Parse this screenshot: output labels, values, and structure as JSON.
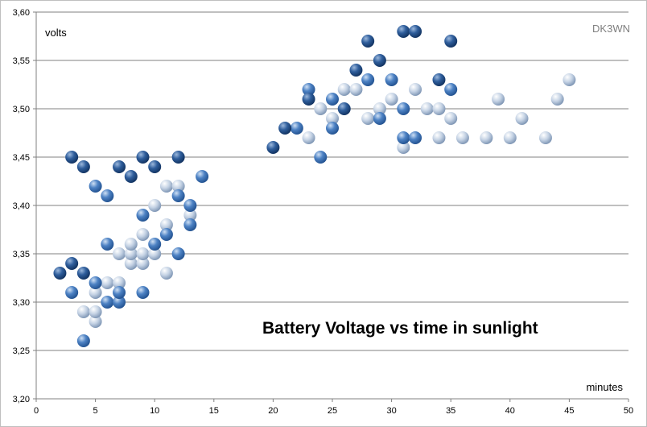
{
  "chart_data": {
    "type": "scatter",
    "title": "Battery Voltage vs  time in sunlight",
    "xlabel": "minutes",
    "ylabel": "volts",
    "credit": "DK3WN",
    "xlim": [
      0,
      50
    ],
    "ylim": [
      3.2,
      3.6
    ],
    "x_ticks": [
      "0",
      "5",
      "10",
      "15",
      "20",
      "25",
      "30",
      "35",
      "40",
      "45",
      "50"
    ],
    "y_ticks": [
      "3,20",
      "3,25",
      "3,30",
      "3,35",
      "3,40",
      "3,45",
      "3,50",
      "3,55",
      "3,60"
    ],
    "grid": "horizontal",
    "colors": {
      "dark": "#1f4e8c",
      "medium": "#3f73b8",
      "light": "#b8c8dc",
      "grid": "#808080",
      "frame": "#bfbfbf"
    },
    "series": [
      {
        "color": "dark",
        "points": [
          [
            2,
            3.33
          ],
          [
            3,
            3.34
          ],
          [
            4,
            3.33
          ],
          [
            3,
            3.45
          ],
          [
            4,
            3.44
          ],
          [
            7,
            3.44
          ],
          [
            8,
            3.43
          ],
          [
            9,
            3.45
          ],
          [
            10,
            3.44
          ],
          [
            12,
            3.45
          ],
          [
            20,
            3.46
          ],
          [
            21,
            3.48
          ],
          [
            23,
            3.51
          ],
          [
            26,
            3.5
          ],
          [
            27,
            3.54
          ],
          [
            28,
            3.57
          ],
          [
            29,
            3.55
          ],
          [
            31,
            3.58
          ],
          [
            32,
            3.58
          ],
          [
            34,
            3.53
          ],
          [
            35,
            3.57
          ]
        ]
      },
      {
        "color": "medium",
        "points": [
          [
            3,
            3.31
          ],
          [
            4,
            3.26
          ],
          [
            5,
            3.32
          ],
          [
            5,
            3.42
          ],
          [
            6,
            3.41
          ],
          [
            6,
            3.36
          ],
          [
            6,
            3.3
          ],
          [
            7,
            3.3
          ],
          [
            7,
            3.31
          ],
          [
            9,
            3.31
          ],
          [
            9,
            3.39
          ],
          [
            10,
            3.36
          ],
          [
            11,
            3.37
          ],
          [
            12,
            3.41
          ],
          [
            12,
            3.35
          ],
          [
            13,
            3.38
          ],
          [
            13,
            3.4
          ],
          [
            14,
            3.43
          ],
          [
            22,
            3.48
          ],
          [
            23,
            3.52
          ],
          [
            24,
            3.45
          ],
          [
            25,
            3.48
          ],
          [
            25,
            3.51
          ],
          [
            28,
            3.53
          ],
          [
            29,
            3.49
          ],
          [
            30,
            3.53
          ],
          [
            31,
            3.5
          ],
          [
            31,
            3.47
          ],
          [
            32,
            3.47
          ],
          [
            35,
            3.52
          ]
        ]
      },
      {
        "color": "light",
        "points": [
          [
            4,
            3.29
          ],
          [
            5,
            3.28
          ],
          [
            5,
            3.29
          ],
          [
            5,
            3.31
          ],
          [
            6,
            3.32
          ],
          [
            7,
            3.32
          ],
          [
            7,
            3.35
          ],
          [
            8,
            3.34
          ],
          [
            8,
            3.35
          ],
          [
            8,
            3.36
          ],
          [
            9,
            3.34
          ],
          [
            9,
            3.35
          ],
          [
            9,
            3.37
          ],
          [
            10,
            3.35
          ],
          [
            10,
            3.4
          ],
          [
            11,
            3.33
          ],
          [
            11,
            3.38
          ],
          [
            11,
            3.42
          ],
          [
            12,
            3.42
          ],
          [
            13,
            3.39
          ],
          [
            23,
            3.47
          ],
          [
            24,
            3.5
          ],
          [
            25,
            3.49
          ],
          [
            26,
            3.52
          ],
          [
            27,
            3.52
          ],
          [
            28,
            3.49
          ],
          [
            29,
            3.5
          ],
          [
            30,
            3.51
          ],
          [
            31,
            3.46
          ],
          [
            32,
            3.52
          ],
          [
            33,
            3.5
          ],
          [
            34,
            3.5
          ],
          [
            34,
            3.47
          ],
          [
            35,
            3.49
          ],
          [
            36,
            3.47
          ],
          [
            38,
            3.47
          ],
          [
            39,
            3.51
          ],
          [
            40,
            3.47
          ],
          [
            41,
            3.49
          ],
          [
            43,
            3.47
          ],
          [
            44,
            3.51
          ],
          [
            45,
            3.53
          ]
        ]
      }
    ]
  }
}
